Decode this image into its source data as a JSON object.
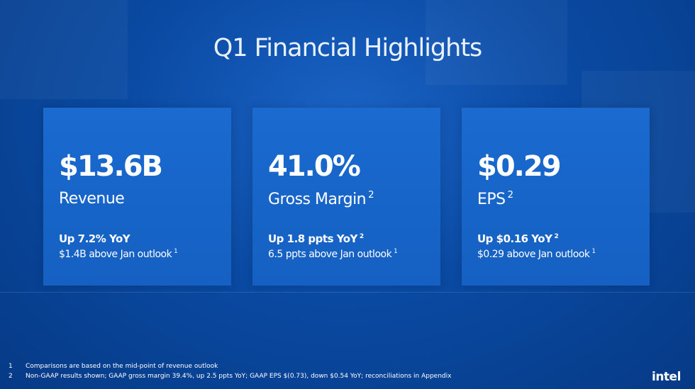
{
  "header": {
    "title": "Q1 Financial Highlights"
  },
  "cards": [
    {
      "value": "$13.6B",
      "label": "Revenue",
      "change": "Up 7.2% YoY",
      "outlook": "$1.4B above Jan outlook",
      "outlook_note": "1"
    },
    {
      "value": "41.0%",
      "label": "Gross Margin",
      "label_note": "2",
      "change": "Up 1.8 ppts YoY",
      "change_note": "2",
      "outlook": "6.5 ppts above Jan outlook",
      "outlook_note": "1"
    },
    {
      "value": "$0.29",
      "label": "EPS",
      "label_note": "2",
      "change": "Up $0.16 YoY",
      "change_note": "2",
      "outlook": "$0.29 above Jan outlook",
      "outlook_note": "1"
    }
  ],
  "footnotes": [
    {
      "number": "1",
      "text": "Comparisons are based on the mid-point of revenue outlook"
    },
    {
      "number": "2",
      "text": "Non-GAAP results shown; GAAP gross margin 39.4%, up 2.5 ppts YoY; GAAP EPS $(0.73), down $0.54 YoY; reconciliations in Appendix"
    }
  ],
  "logo": "intel"
}
